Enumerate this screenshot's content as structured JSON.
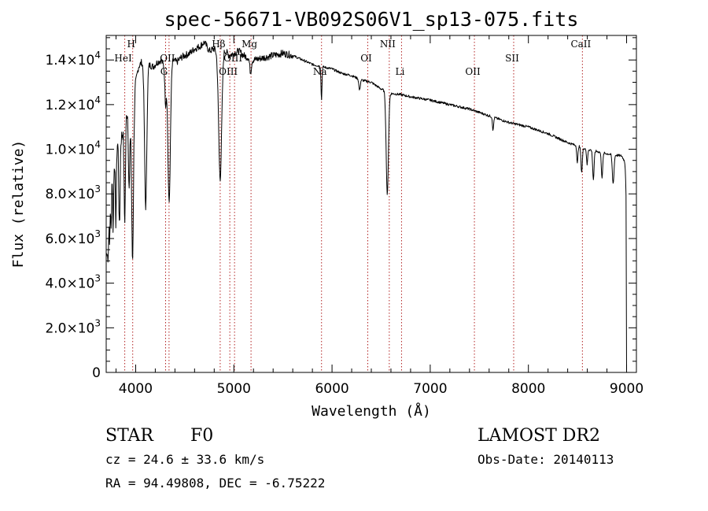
{
  "chart_data": {
    "type": "line",
    "title": "spec-56671-VB092S06V1_sp13-075.fits",
    "xlabel": "Wavelength (Å)",
    "ylabel": "Flux (relative)",
    "xlim": [
      3700,
      9100
    ],
    "ylim": [
      0,
      15100
    ],
    "x_ticks": [
      4000,
      5000,
      6000,
      7000,
      8000,
      9000
    ],
    "x_tick_labels": [
      "4000",
      "5000",
      "6000",
      "7000",
      "8000",
      "9000"
    ],
    "y_ticks": [
      0,
      2000,
      4000,
      6000,
      8000,
      10000,
      12000,
      14000
    ],
    "y_tick_labels": [
      {
        "mantissa": "0",
        "exp": ""
      },
      {
        "mantissa": "2.0×10",
        "exp": "3"
      },
      {
        "mantissa": "4.0×10",
        "exp": "3"
      },
      {
        "mantissa": "6.0×10",
        "exp": "3"
      },
      {
        "mantissa": "8.0×10",
        "exp": "3"
      },
      {
        "mantissa": "1.0×10",
        "exp": "4"
      },
      {
        "mantissa": "1.2×10",
        "exp": "4"
      },
      {
        "mantissa": "1.4×10",
        "exp": "4"
      }
    ],
    "spectral_lines": [
      {
        "label": "HeI",
        "x": 3889,
        "row": 1
      },
      {
        "label": "H",
        "x": 3970,
        "row": 0
      },
      {
        "label": "G",
        "x": 4305,
        "row": 2
      },
      {
        "label": "OII",
        "x": 4340,
        "row": 1
      },
      {
        "label": "Hβ",
        "x": 4861,
        "row": 0
      },
      {
        "label": "OIII",
        "x": 4959,
        "row": 2
      },
      {
        "label": "OIII",
        "x": 5007,
        "row": 1
      },
      {
        "label": "Mg",
        "x": 5175,
        "row": 0
      },
      {
        "label": "Na",
        "x": 5893,
        "row": 2
      },
      {
        "label": "OI",
        "x": 6364,
        "row": 1
      },
      {
        "label": "NII",
        "x": 6583,
        "row": 0
      },
      {
        "label": "Li",
        "x": 6708,
        "row": 2
      },
      {
        "label": "OII",
        "x": 7450,
        "row": 2
      },
      {
        "label": "SII",
        "x": 7850,
        "row": 1
      },
      {
        "label": "CaII",
        "x": 8550,
        "row": 0
      }
    ],
    "continuum": [
      [
        3705,
        5200
      ],
      [
        3720,
        6500
      ],
      [
        3740,
        8400
      ],
      [
        3760,
        9300
      ],
      [
        3780,
        9600
      ],
      [
        3800,
        10200
      ],
      [
        3830,
        10400
      ],
      [
        3860,
        10600
      ],
      [
        3900,
        11600
      ],
      [
        3940,
        12000
      ],
      [
        3970,
        11200
      ],
      [
        4000,
        13000
      ],
      [
        4030,
        13700
      ],
      [
        4060,
        13900
      ],
      [
        4100,
        13700
      ],
      [
        4130,
        13800
      ],
      [
        4180,
        13700
      ],
      [
        4220,
        13900
      ],
      [
        4260,
        14000
      ],
      [
        4300,
        13600
      ],
      [
        4340,
        13800
      ],
      [
        4380,
        14000
      ],
      [
        4420,
        13900
      ],
      [
        4460,
        14100
      ],
      [
        4500,
        14200
      ],
      [
        4550,
        14300
      ],
      [
        4600,
        14500
      ],
      [
        4650,
        14600
      ],
      [
        4700,
        14800
      ],
      [
        4750,
        14400
      ],
      [
        4800,
        14500
      ],
      [
        4861,
        14300
      ],
      [
        4900,
        14500
      ],
      [
        4950,
        14200
      ],
      [
        5000,
        14300
      ],
      [
        5050,
        14400
      ],
      [
        5100,
        14200
      ],
      [
        5150,
        14100
      ],
      [
        5200,
        14000
      ],
      [
        5300,
        14100
      ],
      [
        5400,
        14200
      ],
      [
        5500,
        14300
      ],
      [
        5600,
        14200
      ],
      [
        5700,
        14000
      ],
      [
        5800,
        13800
      ],
      [
        5900,
        13700
      ],
      [
        6000,
        13600
      ],
      [
        6100,
        13400
      ],
      [
        6200,
        13300
      ],
      [
        6300,
        13100
      ],
      [
        6400,
        13000
      ],
      [
        6500,
        12700
      ],
      [
        6600,
        12500
      ],
      [
        6700,
        12450
      ],
      [
        6800,
        12350
      ],
      [
        7000,
        12200
      ],
      [
        7200,
        12000
      ],
      [
        7400,
        11800
      ],
      [
        7600,
        11500
      ],
      [
        7800,
        11200
      ],
      [
        8000,
        11000
      ],
      [
        8200,
        10700
      ],
      [
        8400,
        10300
      ],
      [
        8600,
        10000
      ],
      [
        8800,
        9800
      ],
      [
        8950,
        9700
      ],
      [
        9000,
        9300
      ]
    ],
    "absorption_features": [
      {
        "center": 3720,
        "depth": 1500,
        "width": 6
      },
      {
        "center": 3735,
        "depth": 2200,
        "width": 6
      },
      {
        "center": 3750,
        "depth": 2500,
        "width": 7
      },
      {
        "center": 3771,
        "depth": 3000,
        "width": 7
      },
      {
        "center": 3798,
        "depth": 3400,
        "width": 8
      },
      {
        "center": 3835,
        "depth": 4000,
        "width": 9
      },
      {
        "center": 3889,
        "depth": 4500,
        "width": 10
      },
      {
        "center": 3934,
        "depth": 3800,
        "width": 10
      },
      {
        "center": 3968,
        "depth": 6200,
        "width": 13
      },
      {
        "center": 4102,
        "depth": 6300,
        "width": 16
      },
      {
        "center": 4305,
        "depth": 1500,
        "width": 10
      },
      {
        "center": 4341,
        "depth": 6200,
        "width": 18
      },
      {
        "center": 4861,
        "depth": 5600,
        "width": 22
      },
      {
        "center": 5170,
        "depth": 600,
        "width": 12
      },
      {
        "center": 5893,
        "depth": 1500,
        "width": 7
      },
      {
        "center": 6280,
        "depth": 500,
        "width": 10
      },
      {
        "center": 6563,
        "depth": 4600,
        "width": 16
      },
      {
        "center": 7640,
        "depth": 600,
        "width": 8
      },
      {
        "center": 8498,
        "depth": 800,
        "width": 8
      },
      {
        "center": 8542,
        "depth": 1100,
        "width": 10
      },
      {
        "center": 8598,
        "depth": 700,
        "width": 8
      },
      {
        "center": 8662,
        "depth": 1300,
        "width": 10
      },
      {
        "center": 8750,
        "depth": 1100,
        "width": 10
      },
      {
        "center": 8863,
        "depth": 1300,
        "width": 12
      },
      {
        "center": 9000,
        "depth": 2000,
        "width": 10
      }
    ]
  },
  "info": {
    "object_class": "STAR",
    "subclass": "F0",
    "survey": "LAMOST DR2",
    "cz": "cz = 24.6 ± 33.6 km/s",
    "obs_date": "Obs-Date: 20140113",
    "coords": "RA =  94.49808, DEC =  -6.75222"
  },
  "colors": {
    "line": "#000000",
    "marker_line": "#b22222",
    "frame": "#000000"
  }
}
